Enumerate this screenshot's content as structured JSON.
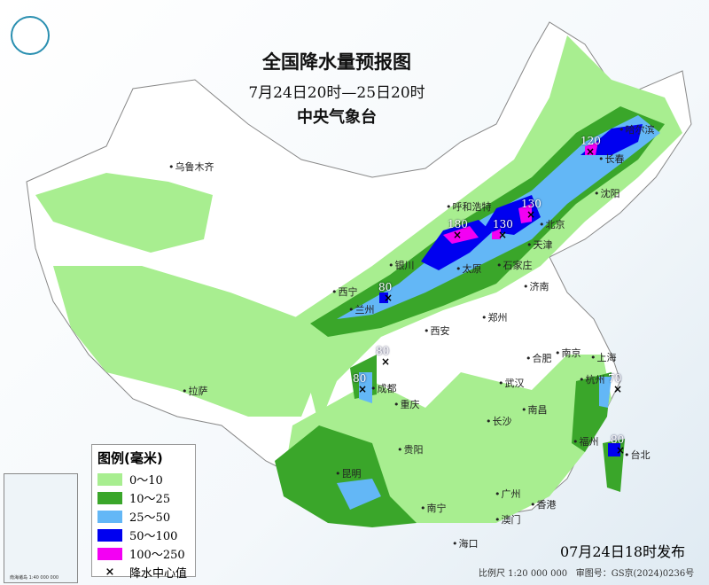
{
  "header": {
    "title": "全国降水量预报图",
    "period": "7月24日20时—25日20时",
    "issuer": "中央气象台"
  },
  "legend": {
    "title": "图例(毫米)",
    "items": [
      {
        "label": "0～10",
        "color": "#a8ee90"
      },
      {
        "label": "10～25",
        "color": "#3aa62a"
      },
      {
        "label": "25～50",
        "color": "#63b7f6"
      },
      {
        "label": "50～100",
        "color": "#0000f0"
      },
      {
        "label": "100～250",
        "color": "#f300f3"
      }
    ],
    "center_marker": {
      "symbol": "×",
      "label": "降水中心值"
    }
  },
  "cities": [
    "乌鲁木齐",
    "哈尔滨",
    "长春",
    "沈阳",
    "呼和浩特",
    "北京",
    "天津",
    "石家庄",
    "太原",
    "银川",
    "西宁",
    "兰州",
    "济南",
    "郑州",
    "西安",
    "合肥",
    "南京",
    "上海",
    "杭州",
    "武汉",
    "成都",
    "重庆",
    "长沙",
    "南昌",
    "拉萨",
    "福州",
    "台北",
    "贵阳",
    "昆明",
    "南宁",
    "广州",
    "澳门",
    "香港",
    "海口"
  ],
  "precip_centers": [
    "180",
    "130",
    "130",
    "120",
    "80",
    "80",
    "80",
    "70",
    "80"
  ],
  "footer": {
    "issued": "07月24日18时发布",
    "scale": "比例尺 1:20 000 000",
    "review": "审图号：GS京(2024)0236号"
  },
  "inset": {
    "note": "南海诸岛 1:40 000 000"
  }
}
